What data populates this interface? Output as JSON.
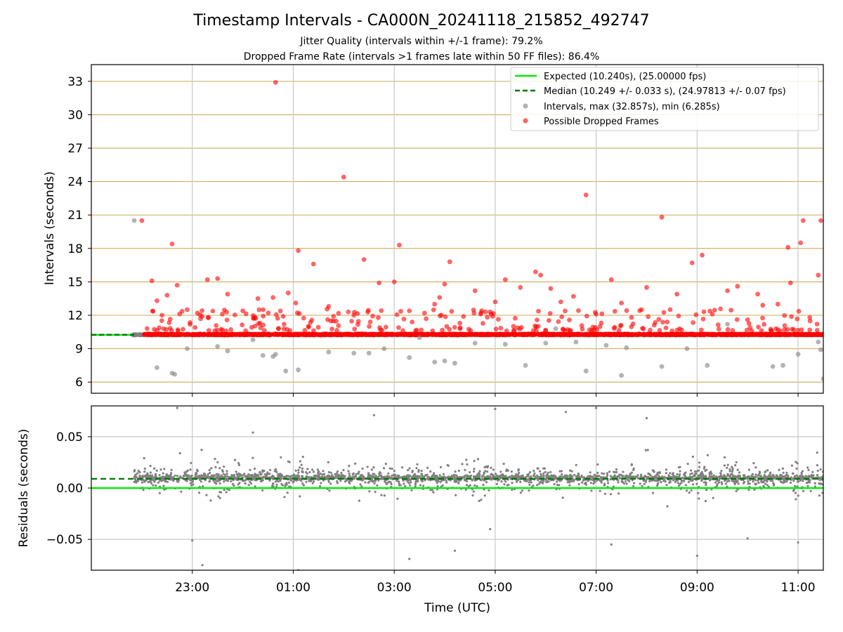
{
  "figure": {
    "title": "Timestamp Intervals - CA000N_20241118_215852_492747",
    "subtitle_1": "Jitter Quality (intervals within +/-1 frame): 79.2%",
    "subtitle_2": "Dropped Frame Rate (intervals >1 frames late within 50 FF files): 86.4%"
  },
  "colors": {
    "expected": "#00ee00",
    "median": "#007700",
    "intervals": "#808080",
    "dropped": "#ff0000",
    "hgrid_top": "#d2b26a",
    "grid": "#c8c8c8"
  },
  "chart_data": [
    {
      "type": "scatter",
      "panel": "top",
      "ylabel": "Intervals (seconds)",
      "ylim": [
        5.0,
        34.5
      ],
      "yticks": [
        "6",
        "9",
        "12",
        "15",
        "18",
        "21",
        "24",
        "27",
        "30",
        "33"
      ],
      "xlim_hours": [
        21.0,
        35.5
      ],
      "xticks": [
        "23:00",
        "01:00",
        "03:00",
        "05:00",
        "07:00",
        "09:00",
        "11:00"
      ],
      "grid": true,
      "legend_position": "top-right",
      "legend": [
        "Expected (10.240s), (25.00000 fps)",
        "Median (10.249 +/- 0.033 s), (24.97813 +/- 0.07 fps)",
        "Intervals, max (32.857s), min (6.285s)",
        "Possible Dropped Frames"
      ],
      "expected_interval": 10.24,
      "median_interval": 10.249,
      "series": [
        {
          "name": "Possible Dropped Frames",
          "points": [
            [
              22.0,
              20.5
            ],
            [
              22.2,
              15.1
            ],
            [
              22.3,
              13.3
            ],
            [
              22.6,
              18.4
            ],
            [
              22.7,
              14.7
            ],
            [
              22.5,
              13.8
            ],
            [
              22.9,
              12.5
            ],
            [
              23.3,
              15.2
            ],
            [
              23.5,
              15.3
            ],
            [
              23.7,
              13.9
            ],
            [
              24.0,
              12.4
            ],
            [
              24.3,
              13.5
            ],
            [
              24.6,
              13.6
            ],
            [
              24.65,
              32.9
            ],
            [
              24.9,
              14.0
            ],
            [
              25.05,
              13.1
            ],
            [
              25.1,
              17.8
            ],
            [
              25.4,
              16.6
            ],
            [
              25.7,
              12.8
            ],
            [
              26.0,
              24.4
            ],
            [
              26.4,
              17.0
            ],
            [
              26.7,
              14.9
            ],
            [
              27.0,
              15.0
            ],
            [
              27.3,
              12.4
            ],
            [
              27.1,
              18.3
            ],
            [
              27.6,
              12.2
            ],
            [
              27.8,
              13.0
            ],
            [
              28.0,
              14.8
            ],
            [
              28.1,
              16.8
            ],
            [
              28.6,
              14.2
            ],
            [
              28.9,
              12.3
            ],
            [
              29.2,
              15.2
            ],
            [
              29.5,
              14.5
            ],
            [
              29.8,
              15.9
            ],
            [
              29.9,
              15.6
            ],
            [
              30.3,
              13.2
            ],
            [
              30.55,
              13.7
            ],
            [
              30.8,
              22.8
            ],
            [
              31.0,
              12.1
            ],
            [
              31.3,
              15.2
            ],
            [
              31.7,
              11.8
            ],
            [
              32.0,
              14.5
            ],
            [
              32.3,
              20.8
            ],
            [
              32.6,
              13.9
            ],
            [
              32.9,
              16.7
            ],
            [
              33.1,
              17.4
            ],
            [
              33.3,
              12.1
            ],
            [
              33.6,
              14.2
            ],
            [
              34.0,
              11.6
            ],
            [
              34.2,
              13.9
            ],
            [
              34.6,
              13.0
            ],
            [
              34.8,
              18.1
            ],
            [
              34.85,
              14.9
            ],
            [
              35.05,
              18.5
            ],
            [
              35.1,
              20.5
            ],
            [
              35.45,
              20.5
            ],
            [
              35.4,
              15.6
            ],
            [
              34.3,
              12.9
            ],
            [
              33.8,
              14.6
            ],
            [
              31.9,
              12.5
            ],
            [
              29.0,
              13.2
            ],
            [
              27.9,
              13.6
            ],
            [
              26.2,
              12.0
            ],
            [
              25.3,
              11.0
            ],
            [
              23.1,
              12.2
            ],
            [
              22.4,
              12.0
            ],
            [
              30.1,
              14.4
            ],
            [
              28.3,
              11.3
            ],
            [
              31.5,
              13.1
            ],
            [
              24.8,
              11.9
            ]
          ]
        },
        {
          "name": "Intervals, max (32.857s), min (6.285s)",
          "points": [
            [
              21.85,
              20.5
            ],
            [
              22.3,
              7.3
            ],
            [
              22.6,
              6.8
            ],
            [
              22.65,
              6.7
            ],
            [
              22.9,
              9.0
            ],
            [
              23.5,
              9.2
            ],
            [
              23.7,
              8.8
            ],
            [
              24.4,
              8.4
            ],
            [
              24.6,
              8.3
            ],
            [
              24.65,
              8.5
            ],
            [
              24.85,
              7.0
            ],
            [
              25.1,
              7.1
            ],
            [
              25.7,
              8.7
            ],
            [
              26.2,
              8.6
            ],
            [
              26.5,
              8.6
            ],
            [
              26.8,
              9.0
            ],
            [
              27.3,
              8.2
            ],
            [
              27.8,
              7.8
            ],
            [
              28.0,
              7.9
            ],
            [
              28.2,
              7.7
            ],
            [
              28.6,
              9.5
            ],
            [
              29.2,
              9.4
            ],
            [
              29.6,
              7.5
            ],
            [
              30.0,
              9.5
            ],
            [
              30.6,
              9.6
            ],
            [
              30.8,
              7.0
            ],
            [
              31.2,
              9.3
            ],
            [
              31.5,
              6.6
            ],
            [
              31.6,
              9.1
            ],
            [
              32.3,
              7.4
            ],
            [
              32.8,
              9.0
            ],
            [
              33.2,
              7.5
            ],
            [
              33.6,
              11.2
            ],
            [
              34.5,
              7.4
            ],
            [
              34.7,
              7.5
            ],
            [
              35.0,
              8.5
            ],
            [
              35.45,
              8.9
            ],
            [
              35.5,
              6.3
            ],
            [
              35.4,
              9.6
            ],
            [
              27.5,
              10.0
            ],
            [
              30.2,
              10.8
            ],
            [
              24.2,
              9.8
            ]
          ]
        }
      ]
    },
    {
      "type": "scatter",
      "panel": "bottom",
      "ylabel": "Residuals (seconds)",
      "xlabel": "Time (UTC)",
      "ylim": [
        -0.08,
        0.08
      ],
      "yticks": [
        "0.05",
        "0.00",
        "−0.05"
      ],
      "xlim_hours": [
        21.0,
        35.5
      ],
      "xticks": [
        "23:00",
        "01:00",
        "03:00",
        "05:00",
        "07:00",
        "09:00",
        "11:00"
      ],
      "grid": true,
      "expected_residual": 0.0,
      "median_residual": 0.009,
      "series": [
        {
          "name": "Residuals",
          "points": [
            [
              22.7,
              0.078
            ],
            [
              23.0,
              -0.051
            ],
            [
              23.2,
              -0.075
            ],
            [
              25.0,
              -0.082
            ],
            [
              25.1,
              -0.08
            ],
            [
              27.3,
              -0.069
            ],
            [
              28.2,
              -0.061
            ],
            [
              29.0,
              0.077
            ],
            [
              31.3,
              -0.055
            ],
            [
              33.0,
              -0.066
            ],
            [
              34.0,
              -0.049
            ],
            [
              35.0,
              -0.053
            ],
            [
              24.2,
              0.054
            ],
            [
              26.6,
              0.071
            ],
            [
              30.4,
              0.074
            ],
            [
              32.0,
              0.068
            ],
            [
              28.9,
              -0.04
            ],
            [
              31.0,
              0.078
            ]
          ]
        }
      ]
    }
  ]
}
